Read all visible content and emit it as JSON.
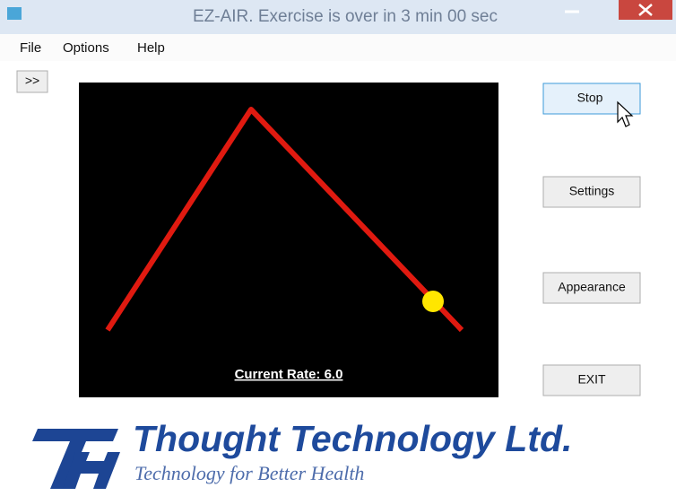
{
  "window": {
    "title": "EZ-AIR. Exercise is over in 3 min 00 sec"
  },
  "menu": [
    "File",
    "Options",
    "Help"
  ],
  "expand_button": ">>",
  "display": {
    "status": "Current Rate: 6.0"
  },
  "buttons": [
    "Stop",
    "Settings",
    "Appearance",
    "EXIT"
  ],
  "logo": {
    "company": "Thought Technology Ltd.",
    "tagline": "Technology for Better Health"
  }
}
